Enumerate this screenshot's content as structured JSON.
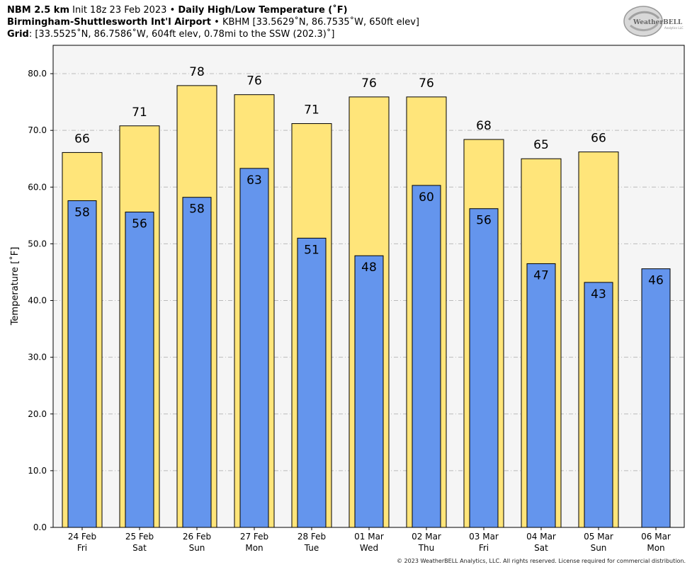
{
  "header": {
    "line1_bold_a": "NBM 2.5 km",
    "line1_mid": " Init 18z 23 Feb 2023 • ",
    "line1_bold_b": "Daily High/Low Temperature (˚F)",
    "line2_bold": "Birmingham-Shuttlesworth Int'l Airport",
    "line2_rest": " • KBHM [33.5629˚N, 86.7535˚W, 650ft elev]",
    "line3_bold": "Grid",
    "line3_rest": ": [33.5525˚N, 86.7586˚W, 604ft elev, 0.78mi to the SSW (202.3)˚]"
  },
  "logo": {
    "icon": "weatherbell-logo",
    "text": "WeatherBELL",
    "sub": "Analytics LLC"
  },
  "copyright": "© 2023 WeatherBELL Analytics, LLC. All rights reserved. License required for commercial distribution.",
  "colors": {
    "high": "#ffe57a",
    "low": "#6495ed",
    "plot_bg": "#f5f5f5",
    "grid": "#bbbbbb"
  },
  "chart_data": {
    "type": "bar",
    "ylabel": "Temperature [˚F]",
    "ylim": [
      0,
      85
    ],
    "yticks": [
      "0.0",
      "10.0",
      "20.0",
      "30.0",
      "40.0",
      "50.0",
      "60.0",
      "70.0",
      "80.0"
    ],
    "grid": true,
    "categories": [
      [
        "24 Feb",
        "Fri"
      ],
      [
        "25 Feb",
        "Sat"
      ],
      [
        "26 Feb",
        "Sun"
      ],
      [
        "27 Feb",
        "Mon"
      ],
      [
        "28 Feb",
        "Tue"
      ],
      [
        "01 Mar",
        "Wed"
      ],
      [
        "02 Mar",
        "Thu"
      ],
      [
        "03 Mar",
        "Fri"
      ],
      [
        "04 Mar",
        "Sat"
      ],
      [
        "05 Mar",
        "Sun"
      ],
      [
        "06 Mar",
        "Mon"
      ]
    ],
    "series": [
      {
        "values": [
          66,
          71,
          78,
          76,
          71,
          76,
          76,
          68,
          65,
          66,
          null
        ],
        "plotted": [
          66.1,
          70.8,
          77.9,
          76.3,
          71.2,
          75.9,
          75.9,
          68.4,
          65.0,
          66.2,
          null
        ]
      },
      {
        "values": [
          58,
          56,
          58,
          63,
          51,
          48,
          60,
          56,
          47,
          43,
          46
        ],
        "plotted": [
          57.6,
          55.6,
          58.2,
          63.3,
          51.0,
          47.9,
          60.3,
          56.2,
          46.5,
          43.2,
          45.6
        ]
      }
    ]
  }
}
